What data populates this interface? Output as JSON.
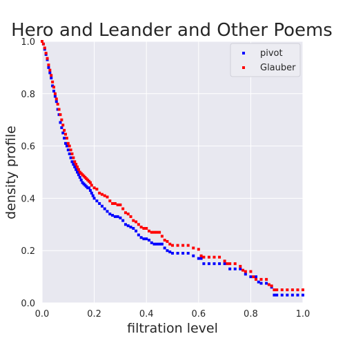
{
  "chart_data": {
    "type": "scatter",
    "title": "Hero and Leander and Other Poems",
    "xlabel": "filtration level",
    "ylabel": "density profile",
    "xlim": [
      0,
      1
    ],
    "ylim": [
      0,
      1
    ],
    "xticks": [
      "0.0",
      "0.2",
      "0.4",
      "0.6",
      "0.8",
      "1.0"
    ],
    "yticks": [
      "0.0",
      "0.2",
      "0.4",
      "0.6",
      "0.8",
      "1.0"
    ],
    "grid": true,
    "legend_position": "top-right",
    "background_color": "#e8e8f0",
    "series": [
      {
        "name": "pivot",
        "color": "#0000ff",
        "points": [
          [
            0.0,
            1.0
          ],
          [
            0.005,
            0.99
          ],
          [
            0.01,
            0.97
          ],
          [
            0.015,
            0.95
          ],
          [
            0.02,
            0.93
          ],
          [
            0.025,
            0.9
          ],
          [
            0.03,
            0.88
          ],
          [
            0.035,
            0.86
          ],
          [
            0.04,
            0.83
          ],
          [
            0.045,
            0.81
          ],
          [
            0.05,
            0.79
          ],
          [
            0.055,
            0.77
          ],
          [
            0.06,
            0.74
          ],
          [
            0.065,
            0.72
          ],
          [
            0.07,
            0.69
          ],
          [
            0.075,
            0.67
          ],
          [
            0.08,
            0.65
          ],
          [
            0.085,
            0.63
          ],
          [
            0.09,
            0.61
          ],
          [
            0.095,
            0.6
          ],
          [
            0.1,
            0.585
          ],
          [
            0.105,
            0.57
          ],
          [
            0.11,
            0.555
          ],
          [
            0.115,
            0.54
          ],
          [
            0.12,
            0.53
          ],
          [
            0.125,
            0.52
          ],
          [
            0.13,
            0.51
          ],
          [
            0.135,
            0.5
          ],
          [
            0.14,
            0.49
          ],
          [
            0.145,
            0.48
          ],
          [
            0.15,
            0.47
          ],
          [
            0.155,
            0.46
          ],
          [
            0.16,
            0.455
          ],
          [
            0.165,
            0.45
          ],
          [
            0.17,
            0.445
          ],
          [
            0.175,
            0.44
          ],
          [
            0.18,
            0.44
          ],
          [
            0.185,
            0.43
          ],
          [
            0.19,
            0.42
          ],
          [
            0.195,
            0.41
          ],
          [
            0.2,
            0.4
          ],
          [
            0.21,
            0.39
          ],
          [
            0.22,
            0.38
          ],
          [
            0.23,
            0.37
          ],
          [
            0.24,
            0.36
          ],
          [
            0.25,
            0.35
          ],
          [
            0.26,
            0.34
          ],
          [
            0.27,
            0.335
          ],
          [
            0.28,
            0.33
          ],
          [
            0.29,
            0.33
          ],
          [
            0.3,
            0.325
          ],
          [
            0.31,
            0.315
          ],
          [
            0.32,
            0.3
          ],
          [
            0.33,
            0.295
          ],
          [
            0.34,
            0.29
          ],
          [
            0.35,
            0.285
          ],
          [
            0.36,
            0.275
          ],
          [
            0.37,
            0.26
          ],
          [
            0.38,
            0.25
          ],
          [
            0.39,
            0.245
          ],
          [
            0.4,
            0.245
          ],
          [
            0.41,
            0.24
          ],
          [
            0.42,
            0.23
          ],
          [
            0.43,
            0.225
          ],
          [
            0.44,
            0.225
          ],
          [
            0.45,
            0.225
          ],
          [
            0.46,
            0.225
          ],
          [
            0.47,
            0.21
          ],
          [
            0.48,
            0.2
          ],
          [
            0.49,
            0.195
          ],
          [
            0.5,
            0.19
          ],
          [
            0.52,
            0.19
          ],
          [
            0.54,
            0.19
          ],
          [
            0.56,
            0.19
          ],
          [
            0.58,
            0.18
          ],
          [
            0.6,
            0.17
          ],
          [
            0.61,
            0.17
          ],
          [
            0.62,
            0.15
          ],
          [
            0.64,
            0.15
          ],
          [
            0.66,
            0.15
          ],
          [
            0.68,
            0.15
          ],
          [
            0.7,
            0.15
          ],
          [
            0.72,
            0.13
          ],
          [
            0.74,
            0.13
          ],
          [
            0.76,
            0.13
          ],
          [
            0.78,
            0.11
          ],
          [
            0.8,
            0.1
          ],
          [
            0.82,
            0.1
          ],
          [
            0.83,
            0.08
          ],
          [
            0.84,
            0.075
          ],
          [
            0.86,
            0.075
          ],
          [
            0.88,
            0.06
          ],
          [
            0.89,
            0.03
          ],
          [
            0.9,
            0.03
          ],
          [
            0.92,
            0.03
          ],
          [
            0.94,
            0.03
          ],
          [
            0.96,
            0.03
          ],
          [
            0.98,
            0.03
          ],
          [
            1.0,
            0.03
          ]
        ]
      },
      {
        "name": "Glauber",
        "color": "#ff0000",
        "points": [
          [
            0.0,
            1.0
          ],
          [
            0.005,
            0.99
          ],
          [
            0.01,
            0.975
          ],
          [
            0.015,
            0.955
          ],
          [
            0.02,
            0.935
          ],
          [
            0.025,
            0.91
          ],
          [
            0.03,
            0.89
          ],
          [
            0.035,
            0.87
          ],
          [
            0.04,
            0.845
          ],
          [
            0.045,
            0.825
          ],
          [
            0.05,
            0.8
          ],
          [
            0.055,
            0.78
          ],
          [
            0.06,
            0.76
          ],
          [
            0.065,
            0.74
          ],
          [
            0.07,
            0.72
          ],
          [
            0.075,
            0.7
          ],
          [
            0.08,
            0.68
          ],
          [
            0.085,
            0.66
          ],
          [
            0.09,
            0.645
          ],
          [
            0.095,
            0.63
          ],
          [
            0.1,
            0.61
          ],
          [
            0.105,
            0.6
          ],
          [
            0.11,
            0.585
          ],
          [
            0.115,
            0.57
          ],
          [
            0.12,
            0.555
          ],
          [
            0.125,
            0.54
          ],
          [
            0.13,
            0.53
          ],
          [
            0.135,
            0.52
          ],
          [
            0.14,
            0.51
          ],
          [
            0.145,
            0.5
          ],
          [
            0.15,
            0.495
          ],
          [
            0.155,
            0.49
          ],
          [
            0.16,
            0.485
          ],
          [
            0.165,
            0.48
          ],
          [
            0.17,
            0.475
          ],
          [
            0.175,
            0.47
          ],
          [
            0.18,
            0.465
          ],
          [
            0.185,
            0.46
          ],
          [
            0.19,
            0.45
          ],
          [
            0.2,
            0.44
          ],
          [
            0.21,
            0.435
          ],
          [
            0.22,
            0.42
          ],
          [
            0.23,
            0.415
          ],
          [
            0.24,
            0.41
          ],
          [
            0.25,
            0.405
          ],
          [
            0.26,
            0.39
          ],
          [
            0.27,
            0.38
          ],
          [
            0.28,
            0.38
          ],
          [
            0.29,
            0.375
          ],
          [
            0.3,
            0.375
          ],
          [
            0.31,
            0.36
          ],
          [
            0.32,
            0.345
          ],
          [
            0.33,
            0.34
          ],
          [
            0.34,
            0.33
          ],
          [
            0.35,
            0.315
          ],
          [
            0.36,
            0.31
          ],
          [
            0.37,
            0.3
          ],
          [
            0.38,
            0.29
          ],
          [
            0.39,
            0.285
          ],
          [
            0.4,
            0.285
          ],
          [
            0.41,
            0.275
          ],
          [
            0.42,
            0.27
          ],
          [
            0.43,
            0.27
          ],
          [
            0.44,
            0.27
          ],
          [
            0.45,
            0.27
          ],
          [
            0.46,
            0.255
          ],
          [
            0.47,
            0.24
          ],
          [
            0.48,
            0.235
          ],
          [
            0.49,
            0.225
          ],
          [
            0.5,
            0.22
          ],
          [
            0.52,
            0.22
          ],
          [
            0.54,
            0.22
          ],
          [
            0.56,
            0.22
          ],
          [
            0.58,
            0.21
          ],
          [
            0.6,
            0.205
          ],
          [
            0.61,
            0.18
          ],
          [
            0.62,
            0.175
          ],
          [
            0.64,
            0.175
          ],
          [
            0.66,
            0.175
          ],
          [
            0.68,
            0.175
          ],
          [
            0.7,
            0.16
          ],
          [
            0.71,
            0.15
          ],
          [
            0.72,
            0.15
          ],
          [
            0.74,
            0.15
          ],
          [
            0.76,
            0.14
          ],
          [
            0.77,
            0.125
          ],
          [
            0.78,
            0.12
          ],
          [
            0.8,
            0.12
          ],
          [
            0.81,
            0.1
          ],
          [
            0.82,
            0.09
          ],
          [
            0.84,
            0.09
          ],
          [
            0.86,
            0.09
          ],
          [
            0.87,
            0.07
          ],
          [
            0.88,
            0.065
          ],
          [
            0.89,
            0.05
          ],
          [
            0.9,
            0.05
          ],
          [
            0.92,
            0.05
          ],
          [
            0.94,
            0.05
          ],
          [
            0.96,
            0.05
          ],
          [
            0.98,
            0.05
          ],
          [
            1.0,
            0.05
          ]
        ]
      }
    ]
  }
}
